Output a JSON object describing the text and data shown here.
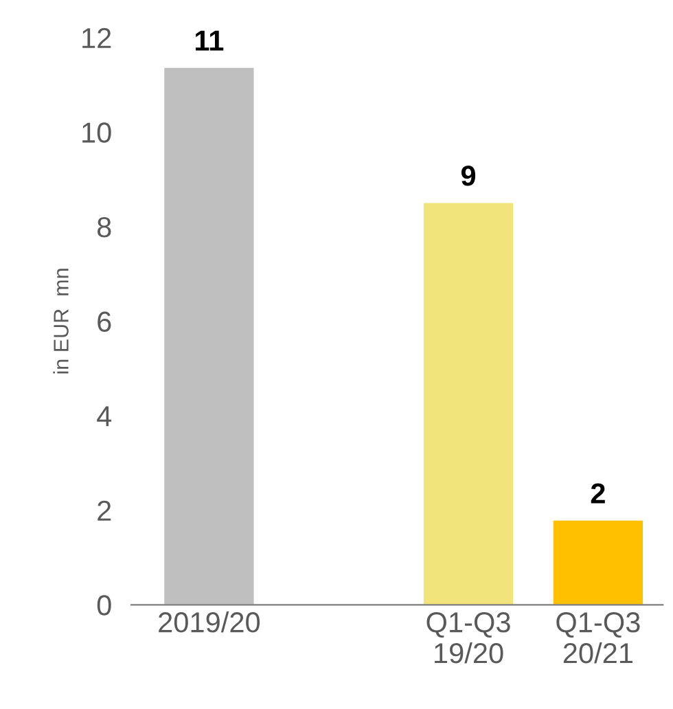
{
  "chart_data": {
    "type": "bar",
    "ylabel": "in EUR  mn",
    "categories": [
      "2019/20",
      null,
      "Q1-Q3\n19/20",
      "Q1-Q3\n20/21"
    ],
    "values": [
      11.36,
      null,
      8.5,
      1.78
    ],
    "colors": [
      "#bfbfbf",
      "#bfbfbf",
      "#f0e47a",
      "#ffc000"
    ],
    "value_labels": [
      "11",
      null,
      "9",
      "2"
    ],
    "ylim": [
      0,
      12
    ],
    "yticks": [
      0,
      2,
      4,
      6,
      8,
      10,
      12
    ],
    "grid": false,
    "legend": false
  }
}
